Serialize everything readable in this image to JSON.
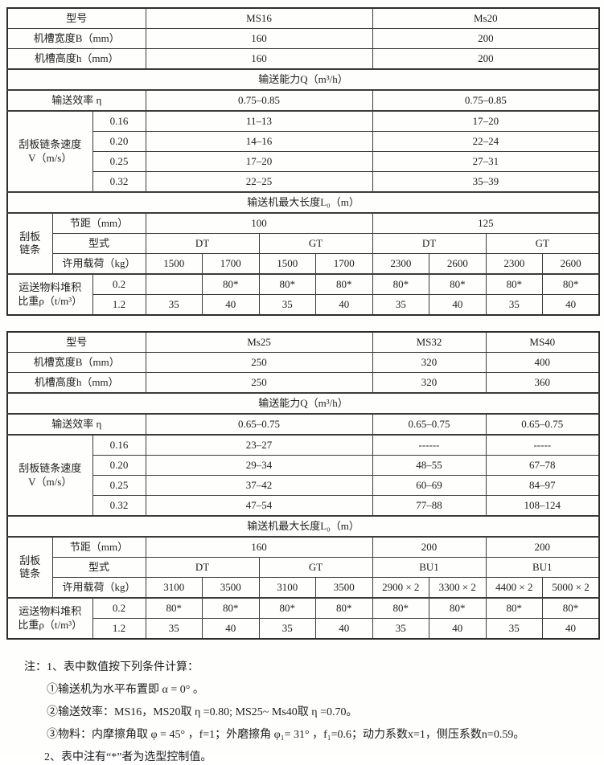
{
  "page": {
    "background": "#fefefd",
    "text_color": "#1d1d1d",
    "border_color": "#3b3b3b",
    "language": "zh-CN",
    "kind": "scraper-conveyor specification tables"
  },
  "tables": [
    {
      "name": "spec-table-ms16-ms20",
      "rows": [
        {
          "cells": [
            {
              "t": "型号",
              "c": 3
            },
            {
              "t": "MS16",
              "c": 4
            },
            {
              "t": "Ms20",
              "c": 4
            }
          ]
        },
        {
          "cells": [
            {
              "t": "机槽宽度B（mm）",
              "c": 3
            },
            {
              "t": "160",
              "c": 4
            },
            {
              "t": "200",
              "c": 4
            }
          ]
        },
        {
          "cells": [
            {
              "t": "机槽高度h（mm）",
              "c": 3
            },
            {
              "t": "160",
              "c": 4
            },
            {
              "t": "200",
              "c": 4
            }
          ]
        },
        {
          "cells": [
            {
              "t": "输送能力Q（m³/h）",
              "c": 11
            }
          ]
        },
        {
          "cells": [
            {
              "t": "输送效率 η",
              "c": 3
            },
            {
              "t": "0.75–0.85",
              "c": 4
            },
            {
              "t": "0.75–0.85",
              "c": 4
            }
          ]
        },
        {
          "cells": [
            {
              "t": "刮板链条速度\nV（m/s）",
              "c": 2,
              "r": 4
            },
            {
              "t": "0.16"
            },
            {
              "t": "11–13",
              "c": 4
            },
            {
              "t": "17–20",
              "c": 4
            }
          ]
        },
        {
          "cells": [
            {
              "t": "0.20"
            },
            {
              "t": "14–16",
              "c": 4
            },
            {
              "t": "22–24",
              "c": 4
            }
          ]
        },
        {
          "cells": [
            {
              "t": "0.25"
            },
            {
              "t": "17–20",
              "c": 4
            },
            {
              "t": "27–31",
              "c": 4
            }
          ]
        },
        {
          "cells": [
            {
              "t": "0.32"
            },
            {
              "t": "22–25",
              "c": 4
            },
            {
              "t": "35–39",
              "c": 4
            }
          ]
        },
        {
          "cells": [
            {
              "t": "输送机最大长度L₀（m）",
              "c": 11
            }
          ]
        },
        {
          "cells": [
            {
              "t": "刮板\n链条",
              "r": 3
            },
            {
              "t": "节距（mm）",
              "c": 2
            },
            {
              "t": "100",
              "c": 4
            },
            {
              "t": "125",
              "c": 4
            }
          ]
        },
        {
          "cells": [
            {
              "t": "型式",
              "c": 2
            },
            {
              "t": "DT",
              "c": 2
            },
            {
              "t": "GT",
              "c": 2
            },
            {
              "t": "DT",
              "c": 2
            },
            {
              "t": "GT",
              "c": 2
            }
          ]
        },
        {
          "cells": [
            {
              "t": "许用载荷（kg）",
              "c": 2
            },
            {
              "t": "1500"
            },
            {
              "t": "1700"
            },
            {
              "t": "1500"
            },
            {
              "t": "1700"
            },
            {
              "t": "2300"
            },
            {
              "t": "2600"
            },
            {
              "t": "2300"
            },
            {
              "t": "2600"
            }
          ]
        },
        {
          "cells": [
            {
              "t": "运送物料堆积\n比重ρ（t/m³）",
              "c": 2,
              "r": 2
            },
            {
              "t": "0.2"
            },
            {
              "t": ""
            },
            {
              "t": "80*"
            },
            {
              "t": "80*"
            },
            {
              "t": "80*"
            },
            {
              "t": "80*"
            },
            {
              "t": "80*"
            },
            {
              "t": "80*"
            },
            {
              "t": "80*"
            }
          ]
        },
        {
          "cells": [
            {
              "t": "1.2"
            },
            {
              "t": "35"
            },
            {
              "t": "40"
            },
            {
              "t": "35"
            },
            {
              "t": "40"
            },
            {
              "t": "35"
            },
            {
              "t": "40"
            },
            {
              "t": "35"
            },
            {
              "t": "40"
            }
          ]
        }
      ]
    },
    {
      "name": "spec-table-ms25-ms40",
      "rows": [
        {
          "cells": [
            {
              "t": "型号",
              "c": 3
            },
            {
              "t": "Ms25",
              "c": 4
            },
            {
              "t": "MS32",
              "c": 2
            },
            {
              "t": "MS40",
              "c": 2
            }
          ]
        },
        {
          "cells": [
            {
              "t": "机槽宽度B（mm）",
              "c": 3
            },
            {
              "t": "250",
              "c": 4
            },
            {
              "t": "320",
              "c": 2
            },
            {
              "t": "400",
              "c": 2
            }
          ]
        },
        {
          "cells": [
            {
              "t": "机槽高度h（mm）",
              "c": 3
            },
            {
              "t": "250",
              "c": 4
            },
            {
              "t": "320",
              "c": 2
            },
            {
              "t": "360",
              "c": 2
            }
          ]
        },
        {
          "cells": [
            {
              "t": "输送能力Q（m³/h）",
              "c": 11
            }
          ]
        },
        {
          "cells": [
            {
              "t": "输送效率 η",
              "c": 3
            },
            {
              "t": "0.65–0.75",
              "c": 4
            },
            {
              "t": "0.65–0.75",
              "c": 2
            },
            {
              "t": "0.65–0.75",
              "c": 2
            }
          ]
        },
        {
          "cells": [
            {
              "t": "刮板链条速度\nV（m/s）",
              "c": 2,
              "r": 4
            },
            {
              "t": "0.16"
            },
            {
              "t": "23–27",
              "c": 4
            },
            {
              "t": "------",
              "c": 2
            },
            {
              "t": "-----",
              "c": 2
            }
          ]
        },
        {
          "cells": [
            {
              "t": "0.20"
            },
            {
              "t": "29–34",
              "c": 4
            },
            {
              "t": "48–55",
              "c": 2
            },
            {
              "t": "67–78",
              "c": 2
            }
          ]
        },
        {
          "cells": [
            {
              "t": "0.25"
            },
            {
              "t": "37–42",
              "c": 4
            },
            {
              "t": "60–69",
              "c": 2
            },
            {
              "t": "84–97",
              "c": 2
            }
          ]
        },
        {
          "cells": [
            {
              "t": "0.32"
            },
            {
              "t": "47–54",
              "c": 4
            },
            {
              "t": "77–88",
              "c": 2
            },
            {
              "t": "108–124",
              "c": 2
            }
          ]
        },
        {
          "cells": [
            {
              "t": "输送机最大长度L₀（m）",
              "c": 11
            }
          ]
        },
        {
          "cells": [
            {
              "t": "刮板\n链条",
              "r": 3
            },
            {
              "t": "节距（mm）",
              "c": 2
            },
            {
              "t": "160",
              "c": 4
            },
            {
              "t": "200",
              "c": 2
            },
            {
              "t": "200",
              "c": 2
            }
          ]
        },
        {
          "cells": [
            {
              "t": "型式",
              "c": 2
            },
            {
              "t": "DT",
              "c": 2
            },
            {
              "t": "GT",
              "c": 2
            },
            {
              "t": "BU1",
              "c": 2
            },
            {
              "t": "BU1",
              "c": 2
            }
          ]
        },
        {
          "cells": [
            {
              "t": "许用载荷（kg）",
              "c": 2
            },
            {
              "t": "3100"
            },
            {
              "t": "3500"
            },
            {
              "t": "3100"
            },
            {
              "t": "3500"
            },
            {
              "t": "2900 × 2"
            },
            {
              "t": "3300 × 2"
            },
            {
              "t": "4400 × 2"
            },
            {
              "t": "5000 × 2"
            }
          ]
        },
        {
          "cells": [
            {
              "t": "运送物料堆积\n比重ρ（t/m³）",
              "c": 2,
              "r": 2
            },
            {
              "t": "0.2"
            },
            {
              "t": "80*"
            },
            {
              "t": "80*"
            },
            {
              "t": "80*"
            },
            {
              "t": "80*"
            },
            {
              "t": "80*"
            },
            {
              "t": "80*"
            },
            {
              "t": "80*"
            },
            {
              "t": "80*"
            }
          ]
        },
        {
          "cells": [
            {
              "t": "1.2"
            },
            {
              "t": "35"
            },
            {
              "t": "40"
            },
            {
              "t": "35"
            },
            {
              "t": "40"
            },
            {
              "t": "35"
            },
            {
              "t": "40"
            },
            {
              "t": "35"
            },
            {
              "t": "40"
            }
          ]
        }
      ]
    }
  ],
  "notes": [
    "注：1、表中数值按下列条件计算：",
    "①输送机为水平布置即 α = 0° 。",
    "②输送效率：MS16，MS20取 η =0.80; MS25~ Ms40取 η =0.70。",
    "③物料：内摩擦角取 φ = 45° ，f=1；外磨擦角 φ₁= 31° ，f₁=0.6；动力系数x=1，侧压系数n=0.59。",
    "2、表中注有“*”者为选型控制值。"
  ]
}
